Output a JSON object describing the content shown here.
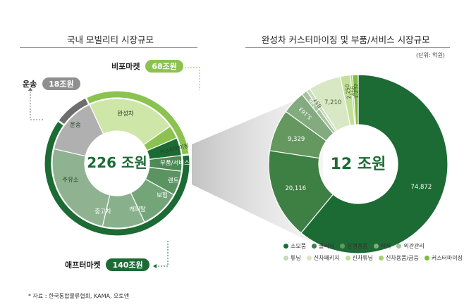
{
  "left": {
    "title": "국내 모빌리티 시장규모",
    "center_label": "226 조원",
    "callouts": {
      "bifo": {
        "label": "비포마켓",
        "value": "68조원",
        "color": "#8cc24f"
      },
      "transport": {
        "label": "운송",
        "value": "18조원",
        "color": "#8f8f8f"
      },
      "after": {
        "label": "애프터마켓",
        "value": "140조원",
        "color": "#1d6b34"
      }
    }
  },
  "right": {
    "title": "완성차 커스터마이징 및 부품/서비스 시장규모",
    "unit": "(단위: 억원)",
    "center_label": "12 조원"
  },
  "chart_data": [
    {
      "type": "pie",
      "title": "국내 모빌리티 시장규모",
      "outer_ring": [
        {
          "label": "비포마켓",
          "value": 68,
          "color": "#8cc24f"
        },
        {
          "label": "애프터마켓",
          "value": 140,
          "color": "#1d6b34"
        },
        {
          "label": "운송",
          "value": 18,
          "color": "#6d6d6d"
        }
      ],
      "inner_slices": [
        {
          "label": "완성차",
          "color": "#cfe6a9"
        },
        {
          "label": "커스터마이징",
          "color": "#8cc24f"
        },
        {
          "label": "부품/서비스",
          "color": "#1d6b34"
        },
        {
          "label": "렌트",
          "color": "#4e8a56"
        },
        {
          "label": "보험",
          "color": "#5b9461"
        },
        {
          "label": "캐피탈",
          "color": "#73a578"
        },
        {
          "label": "중고차",
          "color": "#88b18b"
        },
        {
          "label": "주유소",
          "color": "#8fb290"
        },
        {
          "label": "운송",
          "color": "#b0b0b0"
        }
      ],
      "center_label": "226 조원"
    },
    {
      "type": "pie",
      "title": "완성차 커스터마이징 및 부품/서비스 시장규모",
      "unit": "억원",
      "slices": [
        {
          "label": "소모품",
          "value": 74872,
          "value_label": "74,872",
          "color": "#1d6b34"
        },
        {
          "label": "클리닝",
          "value": 20116,
          "value_label": "20,116",
          "color": "#3e7f44"
        },
        {
          "label": "운행용품",
          "value": 9329,
          "value_label": "9,329",
          "color": "#64985f"
        },
        {
          "label": "레저",
          "value": 5163,
          "value_label": "5,163",
          "color": "#84ab80"
        },
        {
          "label": "외관관리",
          "value": 1246,
          "value_label": "1,246",
          "color": "#a6c29f"
        },
        {
          "label": "튜닝",
          "value": 837,
          "value_label": "837",
          "color": "#c6dab7"
        },
        {
          "label": "신차패키지",
          "value": 7210,
          "value_label": "7,210",
          "color": "#d9e8c4"
        },
        {
          "label": "신차튜닝",
          "value": 2250,
          "value_label": "2,250",
          "color": "#c3df9a"
        },
        {
          "label": "신차용품/금융",
          "value": 468,
          "value_label": "468",
          "color": "#a8d06d"
        },
        {
          "label": "커스터마이징",
          "value": 1232,
          "value_label": "1,232",
          "color": "#7cbb3f"
        }
      ],
      "center_label": "12 조원"
    }
  ],
  "source": "* 자료 : 한국통합물류협회, KAMA, 오토앤"
}
